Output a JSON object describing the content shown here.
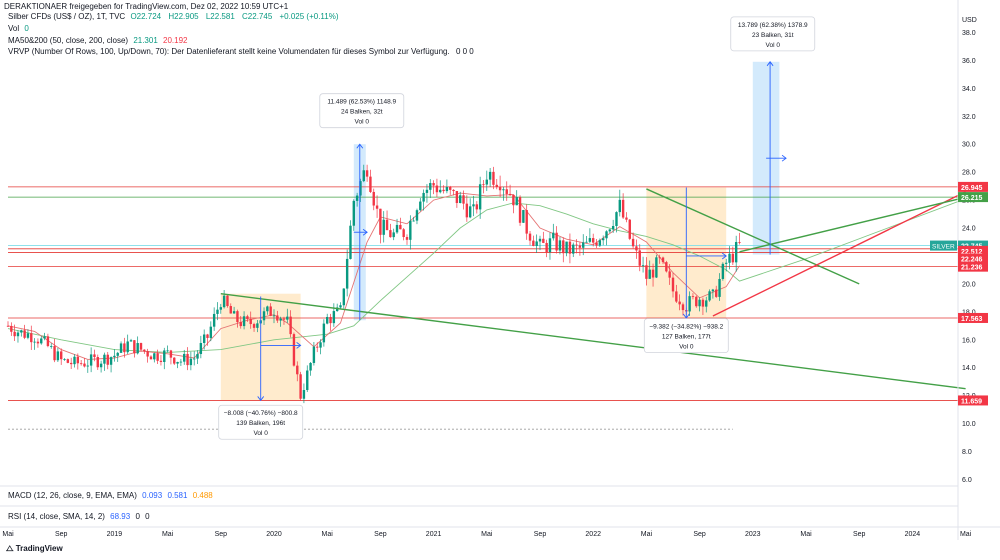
{
  "header": {
    "published_by": "DERAKTIONAER freigegeben for TradingView.com, Dez 02, 2022 10:59 UTC+1"
  },
  "legend": {
    "symbol": "Silber CFDs (US$ / OZ), 1T, TVC",
    "ohlc": [
      "O22.724",
      "H22.905",
      "L22.581",
      "C22.745",
      "+0.025 (+0.11%)"
    ],
    "vol_label": "Vol",
    "vol_value": "0",
    "ma_label": "MA50&200 (50, close, 200, close)",
    "ma_values": [
      "21.301",
      "20.192"
    ],
    "vrvp_label": "VRVP (Number Of Rows, 100, Up/Down, 70): Der Datenlieferant stellt keine Volumendaten für dieses Symbol zur Verfügung.",
    "vrvp_values": "0  0  0"
  },
  "indicators": {
    "macd_label": "MACD (12, 26, close, 9, EMA, EMA)",
    "macd_values": [
      "0.093",
      "0.581",
      "0.488"
    ],
    "rsi_label": "RSI (14, close, SMA, 14, 2)",
    "rsi_values": [
      "68.93",
      "0",
      "0"
    ]
  },
  "footer": {
    "brand": "TradingView"
  },
  "colors": {
    "up": "#089981",
    "down": "#f23645",
    "ma50": "#e57373",
    "ma200": "#81c784",
    "hline": "#e53935",
    "trend_green": "#43a047",
    "trend_red": "#f23645",
    "box_orange": "#ffe0b2",
    "box_blue": "#bbdefb",
    "arrow_blue": "#2962ff"
  },
  "chart_data": {
    "type": "line",
    "subtype": "candlestick",
    "title": "Silber CFDs (US$ / OZ), 1T, TVC",
    "ylabel": "USD",
    "ylim": [
      5.6,
      38.6
    ],
    "y_ticks": [
      6,
      8,
      10,
      12,
      14,
      16,
      18,
      20,
      22,
      24,
      26,
      28,
      30,
      32,
      34,
      36,
      38
    ],
    "x_ticks": [
      "Mai",
      "Sep",
      "2019",
      "Mai",
      "Sep",
      "2020",
      "Mai",
      "Sep",
      "2021",
      "Mai",
      "Sep",
      "2022",
      "Mai",
      "Sep",
      "2023",
      "Mai",
      "Sep",
      "2024",
      "Mai"
    ],
    "x_tick_months": [
      0,
      4,
      8,
      12,
      16,
      20,
      24,
      28,
      32,
      36,
      40,
      44,
      48,
      52,
      56,
      60,
      64,
      68,
      72
    ],
    "x_start": "2018-05",
    "price_path": [
      [
        0,
        17.0
      ],
      [
        1,
        16.5
      ],
      [
        2,
        16.3
      ],
      [
        3,
        15.5
      ],
      [
        4,
        14.5
      ],
      [
        5,
        14.3
      ],
      [
        6,
        14.4
      ],
      [
        7,
        14.6
      ],
      [
        8,
        14.9
      ],
      [
        9,
        15.7
      ],
      [
        10,
        15.3
      ],
      [
        11,
        14.9
      ],
      [
        12,
        15.0
      ],
      [
        13,
        14.5
      ],
      [
        14,
        14.7
      ],
      [
        15,
        16.2
      ],
      [
        16,
        18.9
      ],
      [
        17,
        17.5
      ],
      [
        18,
        17.1
      ],
      [
        19,
        17.6
      ],
      [
        20,
        18.2
      ],
      [
        21,
        17.2
      ],
      [
        22,
        12.0
      ],
      [
        23,
        15.0
      ],
      [
        24,
        17.5
      ],
      [
        25,
        18.0
      ],
      [
        26,
        26.0
      ],
      [
        27,
        28.5
      ],
      [
        28,
        24.0
      ],
      [
        29,
        23.5
      ],
      [
        30,
        23.8
      ],
      [
        31,
        26.5
      ],
      [
        32,
        27.1
      ],
      [
        33,
        26.5
      ],
      [
        34,
        26.0
      ],
      [
        35,
        25.0
      ],
      [
        36,
        28.0
      ],
      [
        37,
        27.5
      ],
      [
        38,
        26.2
      ],
      [
        39,
        24.0
      ],
      [
        40,
        22.6
      ],
      [
        41,
        23.0
      ],
      [
        42,
        22.4
      ],
      [
        43,
        22.5
      ],
      [
        44,
        23.0
      ],
      [
        45,
        24.0
      ],
      [
        46,
        25.5
      ],
      [
        47,
        22.5
      ],
      [
        48,
        20.5
      ],
      [
        49,
        21.5
      ],
      [
        50,
        19.5
      ],
      [
        51,
        18.5
      ],
      [
        52,
        19.0
      ],
      [
        53,
        19.0
      ],
      [
        54,
        21.5
      ],
      [
        55,
        22.7
      ]
    ],
    "candles_per_month": 4,
    "ma50_path": [
      [
        0,
        17.0
      ],
      [
        2,
        16.6
      ],
      [
        4,
        15.3
      ],
      [
        6,
        14.6
      ],
      [
        8,
        14.7
      ],
      [
        10,
        15.2
      ],
      [
        12,
        15.0
      ],
      [
        14,
        14.7
      ],
      [
        16,
        16.8
      ],
      [
        18,
        17.4
      ],
      [
        20,
        17.8
      ],
      [
        21,
        17.2
      ],
      [
        23,
        15.5
      ],
      [
        25,
        17.2
      ],
      [
        27,
        23.0
      ],
      [
        28,
        24.8
      ],
      [
        30,
        24.3
      ],
      [
        32,
        26.0
      ],
      [
        34,
        26.5
      ],
      [
        36,
        26.3
      ],
      [
        38,
        26.4
      ],
      [
        40,
        24.0
      ],
      [
        42,
        23.2
      ],
      [
        44,
        22.8
      ],
      [
        46,
        24.1
      ],
      [
        48,
        23.0
      ],
      [
        50,
        20.8
      ],
      [
        52,
        19.0
      ],
      [
        54,
        19.8
      ],
      [
        55,
        21.3
      ]
    ],
    "ma200_path": [
      [
        0,
        16.8
      ],
      [
        4,
        16.0
      ],
      [
        8,
        15.3
      ],
      [
        12,
        15.1
      ],
      [
        16,
        15.3
      ],
      [
        20,
        16.0
      ],
      [
        24,
        16.4
      ],
      [
        26,
        17.0
      ],
      [
        28,
        18.8
      ],
      [
        30,
        20.5
      ],
      [
        32,
        22.2
      ],
      [
        34,
        24.0
      ],
      [
        36,
        25.3
      ],
      [
        38,
        25.8
      ],
      [
        40,
        25.6
      ],
      [
        42,
        25.0
      ],
      [
        44,
        24.3
      ],
      [
        46,
        23.8
      ],
      [
        48,
        23.4
      ],
      [
        50,
        22.8
      ],
      [
        52,
        22.0
      ],
      [
        54,
        21.0
      ],
      [
        55,
        20.2
      ],
      [
        60,
        21.8
      ],
      [
        72,
        26.1
      ]
    ],
    "horizontal_levels": [
      26.945,
      26.215,
      22.745,
      22.512,
      22.246,
      21.236,
      17.563,
      11.659
    ],
    "price_labels": [
      {
        "value": 26.945,
        "text": "26.945",
        "color": "#f23645"
      },
      {
        "value": 26.215,
        "text": "26.215",
        "color": "#43a047"
      },
      {
        "value": 22.745,
        "text": "22.745",
        "color": "#26a69a",
        "tag": "SILVER",
        "countdown": "12:00:39"
      },
      {
        "value": 22.512,
        "text": "22.512",
        "color": "#f23645"
      },
      {
        "value": 22.246,
        "text": "22.246",
        "color": "#f23645"
      },
      {
        "value": 21.236,
        "text": "21.236",
        "color": "#f23645"
      },
      {
        "value": 17.563,
        "text": "17.563",
        "color": "#f23645"
      },
      {
        "value": 11.659,
        "text": "11.659",
        "color": "#f23645"
      }
    ],
    "trendlines": [
      {
        "from": [
          16,
          19.3
        ],
        "to": [
          72,
          12.5
        ],
        "color": "#43a047"
      },
      {
        "from": [
          48,
          26.8
        ],
        "to": [
          64,
          20.0
        ],
        "color": "#43a047"
      },
      {
        "from": [
          53,
          17.7
        ],
        "to": [
          72,
          26.6
        ],
        "color": "#f23645"
      },
      {
        "from": [
          55,
          22.3
        ],
        "to": [
          72,
          26.2
        ],
        "color": "#43a047"
      }
    ],
    "measurements": [
      {
        "type": "down",
        "box": [
          16,
          22,
          19.3,
          11.66
        ],
        "box_color": "orange",
        "arrow_x": 19,
        "arrow_from": 19.1,
        "arrow_to": 11.66,
        "h_arrow": [
          19,
          22,
          15.6
        ],
        "label_x": 19,
        "label_value": 10.1,
        "lines": [
          "−8.008 (−40.76%) −800.8",
          "139 Balken, 196t",
          "Vol 0"
        ]
      },
      {
        "type": "up",
        "box": [
          26,
          26.9,
          17.4,
          30.0
        ],
        "box_color": "blue",
        "arrow_x": 26.45,
        "arrow_from": 17.4,
        "arrow_to": 30.0,
        "h_arrow": [
          26,
          27,
          23.7
        ],
        "label_x": 26.6,
        "label_value": 32.4,
        "lines": [
          "11.489 (62.53%) 1148.9",
          "24 Balken, 32t",
          "Vol 0"
        ]
      },
      {
        "type": "down",
        "box": [
          48,
          54,
          26.9,
          17.56
        ],
        "box_color": "orange",
        "arrow_x": 51,
        "arrow_from": 26.9,
        "arrow_to": 17.56,
        "h_arrow": [
          51,
          54,
          22.0
        ],
        "label_x": 51,
        "label_value": 16.3,
        "lines": [
          "−9.382 (−34.82%) −938.2",
          "127 Balken, 177t",
          "Vol 0"
        ]
      },
      {
        "type": "up",
        "box": [
          56,
          58,
          22.1,
          35.9
        ],
        "box_color": "blue",
        "arrow_x": 57.3,
        "arrow_from": 22.1,
        "arrow_to": 35.9,
        "h_arrow": [
          57,
          58.5,
          29.0
        ],
        "label_x": 57.5,
        "label_value": 37.9,
        "lines": [
          "13.789 (62.38%) 1378.9",
          "23 Balken, 31t",
          "Vol 0"
        ]
      }
    ],
    "dotted_level": 9.6,
    "grid": false,
    "legend_position": "top-left"
  }
}
